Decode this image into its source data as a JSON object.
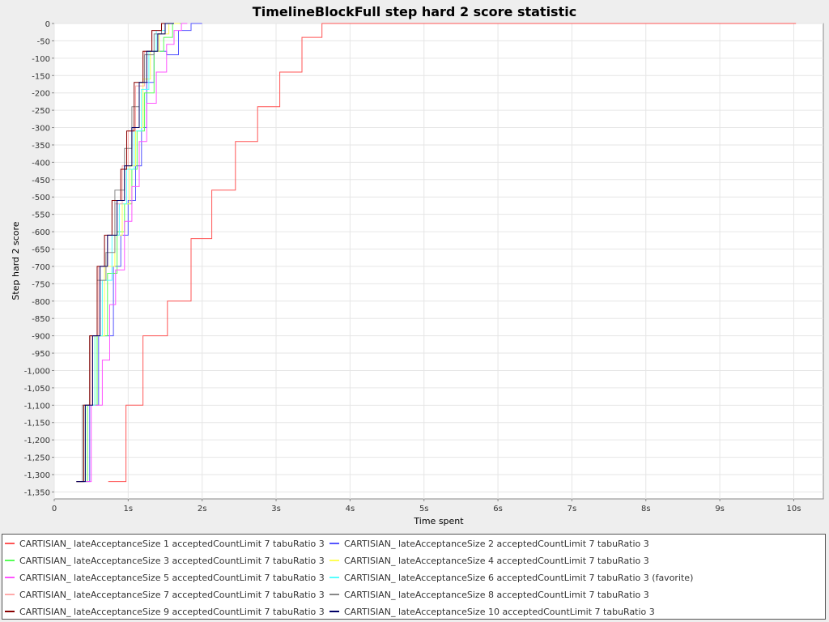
{
  "chart_data": {
    "type": "line",
    "title": "TimelineBlockFull step hard 2 score statistic",
    "xlabel": "Time spent",
    "ylabel": "Step hard 2 score",
    "xlim": [
      0,
      10.4
    ],
    "ylim": [
      -1370,
      0
    ],
    "x_ticks": [
      0,
      1,
      2,
      3,
      4,
      5,
      6,
      7,
      8,
      9,
      10
    ],
    "x_tick_labels": [
      "0",
      "1s",
      "2s",
      "3s",
      "4s",
      "5s",
      "6s",
      "7s",
      "8s",
      "9s",
      "10s"
    ],
    "y_ticks": [
      0,
      -50,
      -100,
      -150,
      -200,
      -250,
      -300,
      -350,
      -400,
      -450,
      -500,
      -550,
      -600,
      -650,
      -700,
      -750,
      -800,
      -850,
      -900,
      -950,
      -1000,
      -1050,
      -1100,
      -1150,
      -1200,
      -1250,
      -1300,
      -1350
    ],
    "y_tick_labels": [
      "0",
      "-50",
      "-100",
      "-150",
      "-200",
      "-250",
      "-300",
      "-350",
      "-400",
      "-450",
      "-500",
      "-550",
      "-600",
      "-650",
      "-700",
      "-750",
      "-800",
      "-850",
      "-900",
      "-950",
      "-1,000",
      "-1,050",
      "-1,100",
      "-1,150",
      "-1,200",
      "-1,250",
      "-1,300",
      "-1,350"
    ],
    "grid": true,
    "legend_position": "bottom",
    "series": [
      {
        "name": "CARTISIAN_ lateAcceptanceSize 1 acceptedCountLimit 7 tabuRatio 3",
        "color": "#ff5555",
        "points": [
          [
            0.73,
            -1320
          ],
          [
            0.97,
            -1320
          ],
          [
            0.97,
            -1100
          ],
          [
            1.2,
            -1100
          ],
          [
            1.2,
            -900
          ],
          [
            1.53,
            -900
          ],
          [
            1.53,
            -800
          ],
          [
            1.85,
            -800
          ],
          [
            1.85,
            -620
          ],
          [
            2.13,
            -620
          ],
          [
            2.13,
            -480
          ],
          [
            2.45,
            -480
          ],
          [
            2.45,
            -340
          ],
          [
            2.75,
            -340
          ],
          [
            2.75,
            -240
          ],
          [
            3.05,
            -240
          ],
          [
            3.05,
            -140
          ],
          [
            3.35,
            -140
          ],
          [
            3.35,
            -40
          ],
          [
            3.62,
            -40
          ],
          [
            3.62,
            0
          ],
          [
            10.03,
            0
          ]
        ]
      },
      {
        "name": "CARTISIAN_ lateAcceptanceSize 2 acceptedCountLimit 7 tabuRatio 3",
        "color": "#5555ff",
        "points": [
          [
            0.3,
            -1320
          ],
          [
            0.48,
            -1320
          ],
          [
            0.48,
            -1100
          ],
          [
            0.6,
            -1100
          ],
          [
            0.6,
            -900
          ],
          [
            0.8,
            -900
          ],
          [
            0.8,
            -700
          ],
          [
            0.9,
            -700
          ],
          [
            0.9,
            -610
          ],
          [
            1.0,
            -610
          ],
          [
            1.0,
            -510
          ],
          [
            1.1,
            -510
          ],
          [
            1.1,
            -410
          ],
          [
            1.18,
            -410
          ],
          [
            1.18,
            -300
          ],
          [
            1.25,
            -300
          ],
          [
            1.25,
            -170
          ],
          [
            1.35,
            -170
          ],
          [
            1.35,
            -80
          ],
          [
            1.52,
            -80
          ],
          [
            1.52,
            -90
          ],
          [
            1.68,
            -90
          ],
          [
            1.68,
            -20
          ],
          [
            1.85,
            -20
          ],
          [
            1.85,
            0
          ],
          [
            2.0,
            0
          ]
        ]
      },
      {
        "name": "CARTISIAN_ lateAcceptanceSize 3 acceptedCountLimit 7 tabuRatio 3",
        "color": "#55ff55",
        "points": [
          [
            0.3,
            -1320
          ],
          [
            0.45,
            -1320
          ],
          [
            0.45,
            -1100
          ],
          [
            0.58,
            -1100
          ],
          [
            0.58,
            -900
          ],
          [
            0.72,
            -900
          ],
          [
            0.72,
            -720
          ],
          [
            0.85,
            -720
          ],
          [
            0.85,
            -600
          ],
          [
            0.95,
            -600
          ],
          [
            0.95,
            -520
          ],
          [
            1.05,
            -520
          ],
          [
            1.05,
            -420
          ],
          [
            1.12,
            -420
          ],
          [
            1.12,
            -310
          ],
          [
            1.22,
            -310
          ],
          [
            1.22,
            -200
          ],
          [
            1.35,
            -200
          ],
          [
            1.35,
            -80
          ],
          [
            1.48,
            -80
          ],
          [
            1.48,
            -40
          ],
          [
            1.6,
            -40
          ],
          [
            1.6,
            0
          ],
          [
            1.75,
            0
          ]
        ]
      },
      {
        "name": "CARTISIAN_ lateAcceptanceSize 4 acceptedCountLimit 7 tabuRatio 3",
        "color": "#ffff55",
        "points": [
          [
            0.3,
            -1320
          ],
          [
            0.42,
            -1320
          ],
          [
            0.42,
            -1100
          ],
          [
            0.55,
            -1100
          ],
          [
            0.55,
            -900
          ],
          [
            0.68,
            -900
          ],
          [
            0.68,
            -700
          ],
          [
            0.82,
            -700
          ],
          [
            0.82,
            -610
          ],
          [
            0.92,
            -610
          ],
          [
            0.92,
            -520
          ],
          [
            1.02,
            -520
          ],
          [
            1.02,
            -410
          ],
          [
            1.1,
            -410
          ],
          [
            1.1,
            -300
          ],
          [
            1.2,
            -300
          ],
          [
            1.2,
            -160
          ],
          [
            1.3,
            -160
          ],
          [
            1.3,
            -80
          ],
          [
            1.42,
            -80
          ],
          [
            1.42,
            -30
          ],
          [
            1.55,
            -30
          ],
          [
            1.55,
            0
          ],
          [
            1.7,
            0
          ]
        ]
      },
      {
        "name": "CARTISIAN_ lateAcceptanceSize 5 acceptedCountLimit 7 tabuRatio 3",
        "color": "#ff55ff",
        "points": [
          [
            0.3,
            -1320
          ],
          [
            0.5,
            -1320
          ],
          [
            0.5,
            -1100
          ],
          [
            0.65,
            -1100
          ],
          [
            0.65,
            -970
          ],
          [
            0.75,
            -970
          ],
          [
            0.75,
            -810
          ],
          [
            0.83,
            -810
          ],
          [
            0.83,
            -710
          ],
          [
            0.95,
            -710
          ],
          [
            0.95,
            -570
          ],
          [
            1.05,
            -570
          ],
          [
            1.05,
            -470
          ],
          [
            1.15,
            -470
          ],
          [
            1.15,
            -340
          ],
          [
            1.25,
            -340
          ],
          [
            1.25,
            -230
          ],
          [
            1.38,
            -230
          ],
          [
            1.38,
            -140
          ],
          [
            1.52,
            -140
          ],
          [
            1.52,
            -60
          ],
          [
            1.62,
            -60
          ],
          [
            1.62,
            -20
          ],
          [
            1.72,
            -20
          ],
          [
            1.72,
            0
          ],
          [
            1.8,
            0
          ]
        ]
      },
      {
        "name": "CARTISIAN_ lateAcceptanceSize 6 acceptedCountLimit 7 tabuRatio 3 (favorite)",
        "color": "#55ffff",
        "points": [
          [
            0.3,
            -1320
          ],
          [
            0.42,
            -1320
          ],
          [
            0.42,
            -1100
          ],
          [
            0.55,
            -1100
          ],
          [
            0.55,
            -900
          ],
          [
            0.65,
            -900
          ],
          [
            0.65,
            -740
          ],
          [
            0.78,
            -740
          ],
          [
            0.78,
            -610
          ],
          [
            0.88,
            -610
          ],
          [
            0.88,
            -520
          ],
          [
            0.98,
            -520
          ],
          [
            0.98,
            -420
          ],
          [
            1.08,
            -420
          ],
          [
            1.08,
            -310
          ],
          [
            1.18,
            -310
          ],
          [
            1.18,
            -190
          ],
          [
            1.28,
            -190
          ],
          [
            1.28,
            -80
          ],
          [
            1.38,
            -80
          ],
          [
            1.38,
            -20
          ],
          [
            1.5,
            -20
          ],
          [
            1.5,
            0
          ],
          [
            1.6,
            0
          ]
        ]
      },
      {
        "name": "CARTISIAN_ lateAcceptanceSize 7 acceptedCountLimit 7 tabuRatio 3",
        "color": "#ffaaaa",
        "points": [
          [
            0.3,
            -1320
          ],
          [
            0.4,
            -1320
          ],
          [
            0.4,
            -1100
          ],
          [
            0.5,
            -1100
          ],
          [
            0.5,
            -900
          ],
          [
            0.6,
            -900
          ],
          [
            0.6,
            -700
          ],
          [
            0.72,
            -700
          ],
          [
            0.72,
            -610
          ],
          [
            0.82,
            -610
          ],
          [
            0.82,
            -520
          ],
          [
            0.92,
            -520
          ],
          [
            0.92,
            -410
          ],
          [
            1.0,
            -410
          ],
          [
            1.0,
            -310
          ],
          [
            1.1,
            -310
          ],
          [
            1.1,
            -180
          ],
          [
            1.22,
            -180
          ],
          [
            1.22,
            -80
          ],
          [
            1.32,
            -80
          ],
          [
            1.32,
            -20
          ],
          [
            1.45,
            -20
          ],
          [
            1.45,
            0
          ],
          [
            1.55,
            0
          ]
        ]
      },
      {
        "name": "CARTISIAN_ lateAcceptanceSize 8 acceptedCountLimit 7 tabuRatio 3",
        "color": "#888888",
        "points": [
          [
            0.3,
            -1320
          ],
          [
            0.38,
            -1320
          ],
          [
            0.38,
            -1100
          ],
          [
            0.48,
            -1100
          ],
          [
            0.48,
            -900
          ],
          [
            0.58,
            -900
          ],
          [
            0.58,
            -740
          ],
          [
            0.7,
            -740
          ],
          [
            0.7,
            -660
          ],
          [
            0.82,
            -660
          ],
          [
            0.82,
            -480
          ],
          [
            0.95,
            -480
          ],
          [
            0.95,
            -360
          ],
          [
            1.05,
            -360
          ],
          [
            1.05,
            -240
          ],
          [
            1.15,
            -240
          ],
          [
            1.15,
            -170
          ],
          [
            1.22,
            -170
          ],
          [
            1.22,
            -90
          ],
          [
            1.35,
            -90
          ],
          [
            1.35,
            -30
          ],
          [
            1.45,
            -30
          ],
          [
            1.45,
            0
          ],
          [
            1.55,
            0
          ]
        ]
      },
      {
        "name": "CARTISIAN_ lateAcceptanceSize 9 acceptedCountLimit 7 tabuRatio 3",
        "color": "#880000",
        "points": [
          [
            0.3,
            -1320
          ],
          [
            0.4,
            -1320
          ],
          [
            0.4,
            -1100
          ],
          [
            0.48,
            -1100
          ],
          [
            0.48,
            -900
          ],
          [
            0.58,
            -900
          ],
          [
            0.58,
            -700
          ],
          [
            0.68,
            -700
          ],
          [
            0.68,
            -610
          ],
          [
            0.78,
            -610
          ],
          [
            0.78,
            -510
          ],
          [
            0.9,
            -510
          ],
          [
            0.9,
            -420
          ],
          [
            0.98,
            -420
          ],
          [
            0.98,
            -310
          ],
          [
            1.08,
            -310
          ],
          [
            1.08,
            -170
          ],
          [
            1.2,
            -170
          ],
          [
            1.2,
            -80
          ],
          [
            1.32,
            -80
          ],
          [
            1.32,
            -20
          ],
          [
            1.45,
            -20
          ],
          [
            1.45,
            0
          ],
          [
            1.55,
            0
          ]
        ]
      },
      {
        "name": "CARTISIAN_ lateAcceptanceSize 10 acceptedCountLimit 7 tabuRatio 3",
        "color": "#000066",
        "points": [
          [
            0.3,
            -1320
          ],
          [
            0.42,
            -1320
          ],
          [
            0.42,
            -1100
          ],
          [
            0.52,
            -1100
          ],
          [
            0.52,
            -900
          ],
          [
            0.62,
            -900
          ],
          [
            0.62,
            -700
          ],
          [
            0.72,
            -700
          ],
          [
            0.72,
            -610
          ],
          [
            0.85,
            -610
          ],
          [
            0.85,
            -510
          ],
          [
            0.95,
            -510
          ],
          [
            0.95,
            -410
          ],
          [
            1.05,
            -410
          ],
          [
            1.05,
            -300
          ],
          [
            1.15,
            -300
          ],
          [
            1.15,
            -170
          ],
          [
            1.25,
            -170
          ],
          [
            1.25,
            -80
          ],
          [
            1.4,
            -80
          ],
          [
            1.4,
            -30
          ],
          [
            1.5,
            -30
          ],
          [
            1.5,
            0
          ],
          [
            1.62,
            0
          ]
        ]
      }
    ]
  }
}
